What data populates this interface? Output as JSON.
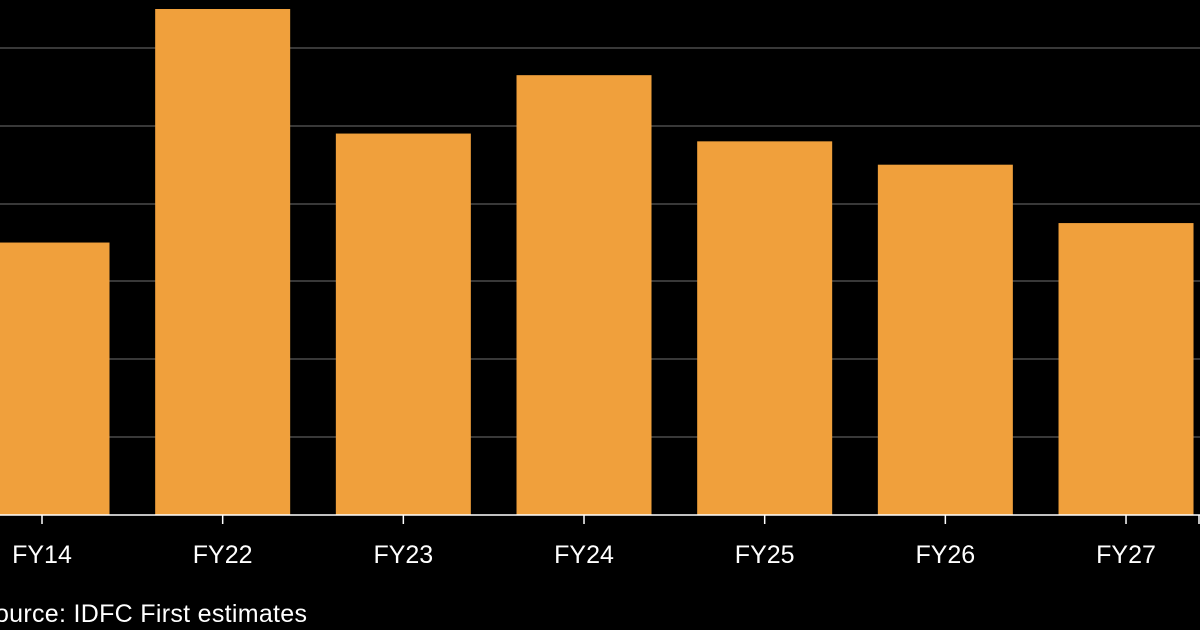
{
  "chart_data": {
    "type": "bar",
    "categories": [
      "FY14",
      "FY22",
      "FY23",
      "FY24",
      "FY25",
      "FY26",
      "FY27"
    ],
    "values": [
      3.5,
      6.5,
      4.9,
      5.65,
      4.8,
      4.5,
      3.75
    ],
    "title": "",
    "xlabel": "",
    "ylabel": "",
    "ylim": [
      0,
      6.5
    ],
    "grid": true,
    "legend": "none"
  },
  "colors": {
    "background": "#000000",
    "bar": "#f0a03c",
    "grid": "#5a5a5a",
    "axis": "#ffffff",
    "text": "#ffffff"
  },
  "source": "Source: IDFC First estimates"
}
